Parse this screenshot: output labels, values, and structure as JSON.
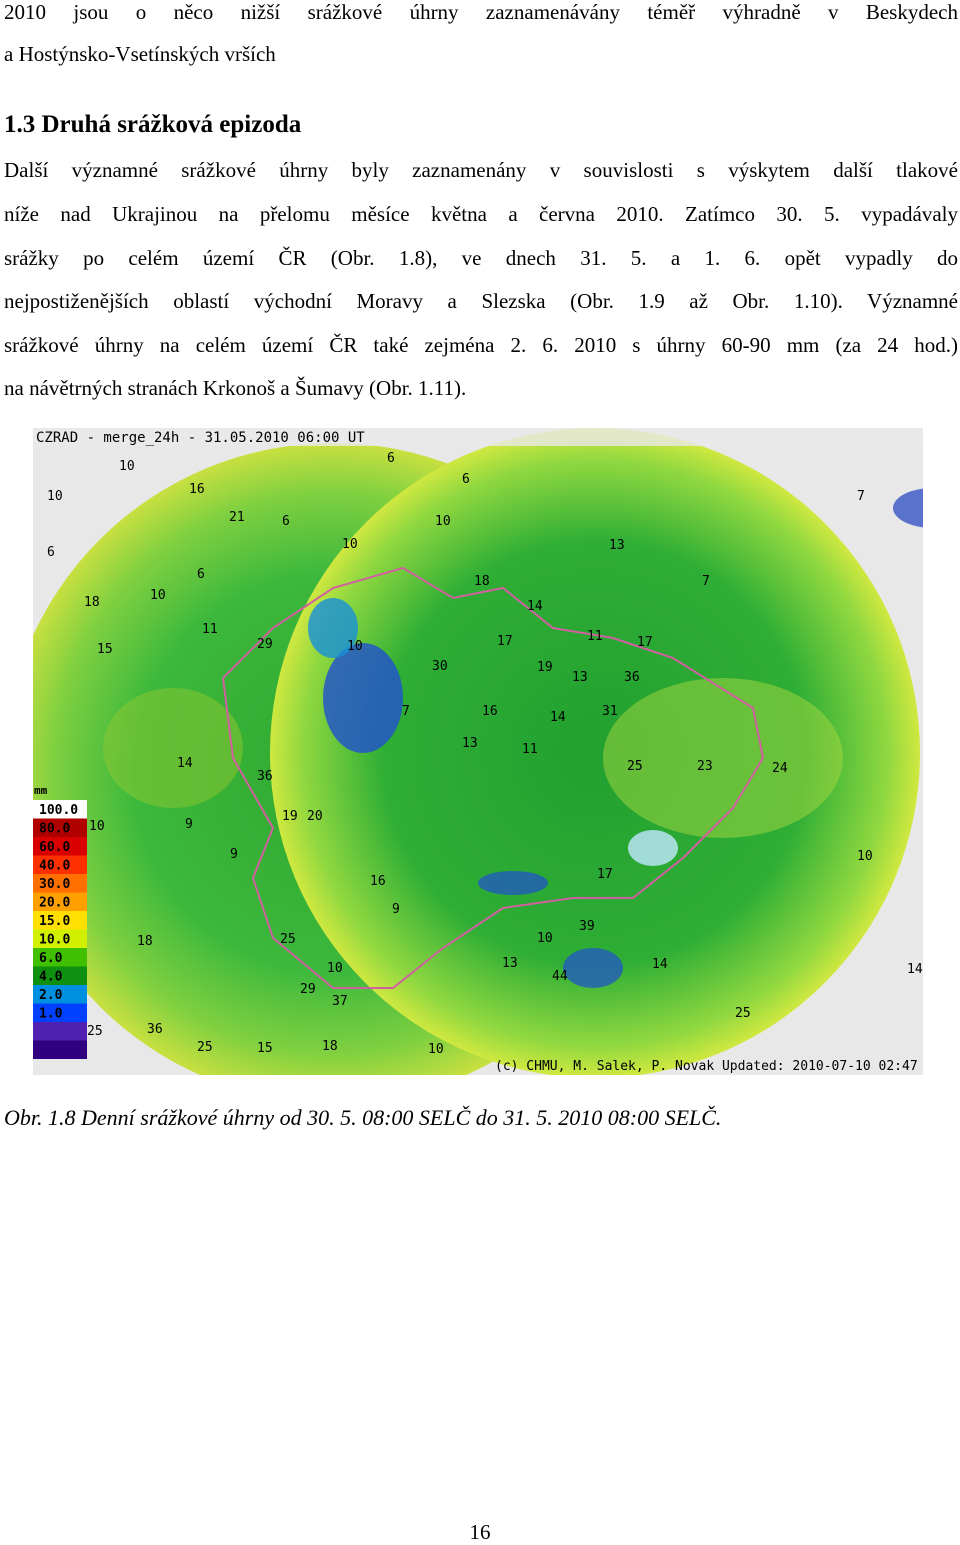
{
  "paragraph_1": {
    "lines": [
      "2010 jsou o něco nižší srážkové úhrny zaznamenávány téměř výhradně v Beskydech",
      "a Hostýnsko-Vsetínských vrších"
    ]
  },
  "section": {
    "heading": "1.3 Druhá srážková epizoda",
    "lines": [
      "Další významné srážkové úhrny byly zaznamenány v souvislosti s výskytem další tlakové",
      "níže nad Ukrajinou na přelomu měsíce května a června 2010. Zatímco 30. 5. vypadávaly",
      "srážky po celém území ČR (Obr. 1.8), ve dnech 31. 5. a 1. 6. opět vypadly do",
      "nejpostiženějších oblastí východní Moravy a Slezska (Obr. 1.9 až Obr. 1.10). Významné",
      "srážkové úhrny na celém území ČR také zejména 2. 6. 2010 s úhrny 60-90 mm (za 24 hod.)",
      "na návětrných stranách Krkonoš a Šumavy (Obr. 1.11)."
    ]
  },
  "figure": {
    "map_title": "CZRAD - merge_24h - 31.05.2010 06:00 UT",
    "credit": "(c) CHMU, M. Salek, P. Novak  Updated: 2010-07-10 02:47 UT",
    "legend": {
      "unit": "mm",
      "entries": [
        {
          "label": "100.0",
          "color": "#ffffff"
        },
        {
          "label": "80.0",
          "color": "#b00000"
        },
        {
          "label": "60.0",
          "color": "#d80000"
        },
        {
          "label": "40.0",
          "color": "#ff3000"
        },
        {
          "label": "30.0",
          "color": "#ff7000"
        },
        {
          "label": "20.0",
          "color": "#ffa000"
        },
        {
          "label": "15.0",
          "color": "#ffe000"
        },
        {
          "label": "10.0",
          "color": "#d0f000"
        },
        {
          "label": "6.0",
          "color": "#40c000"
        },
        {
          "label": "4.0",
          "color": "#109010"
        },
        {
          "label": "2.0",
          "color": "#0090e0"
        },
        {
          "label": "1.0",
          "color": "#0040ff"
        }
      ]
    },
    "station_labels": [
      "10",
      "10",
      "16",
      "21",
      "6",
      "6",
      "10",
      "6",
      "6",
      "10",
      "6",
      "18",
      "10",
      "11",
      "15",
      "29",
      "10",
      "13",
      "7",
      "7",
      "18",
      "14",
      "17",
      "11",
      "17",
      "19",
      "13",
      "36",
      "30",
      "7",
      "16",
      "14",
      "31",
      "13",
      "11",
      "25",
      "23",
      "24",
      "36",
      "14",
      "19",
      "20",
      "10",
      "9",
      "9",
      "16",
      "9",
      "17",
      "10",
      "39",
      "10",
      "13",
      "44",
      "14",
      "25",
      "14",
      "25",
      "37",
      "29",
      "10",
      "25",
      "36",
      "25",
      "15",
      "18",
      "10",
      "18"
    ],
    "caption": "Obr. 1.8 Denní srážkové úhrny od 30. 5. 08:00 SELČ do 31. 5. 2010 08:00 SELČ."
  },
  "page_number": "16"
}
